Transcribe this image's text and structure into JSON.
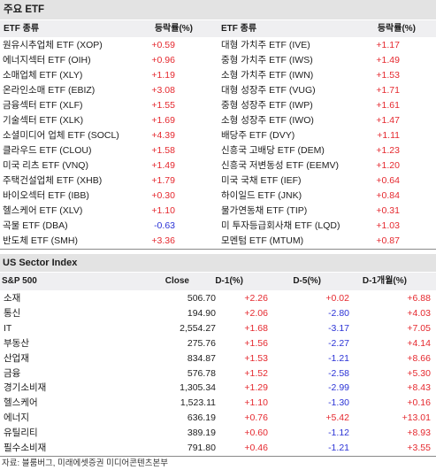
{
  "etf": {
    "title": "주요 ETF",
    "headers": {
      "name_left": "ETF 종류",
      "change_left": "등락률(%)",
      "name_right": "ETF 종류",
      "change_right": "등락률(%)"
    },
    "rows": [
      {
        "name_left": "원유시추업체 ETF (XOP)",
        "change_left": "+0.59",
        "name_right": "대형 가치주 ETF (IVE)",
        "change_right": "+1.17"
      },
      {
        "name_left": "에너지섹터 ETF (OIH)",
        "change_left": "+0.96",
        "name_right": "중형 가치주 ETF (IWS)",
        "change_right": "+1.49"
      },
      {
        "name_left": "소매업체 ETF (XLY)",
        "change_left": "+1.19",
        "name_right": "소형 가치주 ETF (IWN)",
        "change_right": "+1.53"
      },
      {
        "name_left": "온라인소매 ETF (EBIZ)",
        "change_left": "+3.08",
        "name_right": "대형 성장주 ETF (VUG)",
        "change_right": "+1.71"
      },
      {
        "name_left": "금융섹터 ETF (XLF)",
        "change_left": "+1.55",
        "name_right": "중형 성장주 ETF (IWP)",
        "change_right": "+1.61"
      },
      {
        "name_left": "기술섹터 ETF (XLK)",
        "change_left": "+1.69",
        "name_right": "소형 성장주 ETF (IWO)",
        "change_right": "+1.47"
      },
      {
        "name_left": "소셜미디어 업체 ETF (SOCL)",
        "change_left": "+4.39",
        "name_right": "배당주 ETF (DVY)",
        "change_right": "+1.11"
      },
      {
        "name_left": "클라우드 ETF (CLOU)",
        "change_left": "+1.58",
        "name_right": "신흥국 고배당 ETF (DEM)",
        "change_right": "+1.23"
      },
      {
        "name_left": "미국 리츠 ETF (VNQ)",
        "change_left": "+1.49",
        "name_right": "신흥국 저변동성 ETF (EEMV)",
        "change_right": "+1.20"
      },
      {
        "name_left": "주택건설업체 ETF (XHB)",
        "change_left": "+1.79",
        "name_right": "미국 국채 ETF (IEF)",
        "change_right": "+0.64"
      },
      {
        "name_left": "바이오섹터 ETF (IBB)",
        "change_left": "+0.30",
        "name_right": "하이일드 ETF (JNK)",
        "change_right": "+0.84"
      },
      {
        "name_left": "헬스케어 ETF (XLV)",
        "change_left": "+1.10",
        "name_right": "물가연동채 ETF (TIP)",
        "change_right": "+0.31"
      },
      {
        "name_left": "곡물 ETF (DBA)",
        "change_left": "-0.63",
        "name_right": "미 투자등급회사채 ETF (LQD)",
        "change_right": "+1.03"
      },
      {
        "name_left": "반도체 ETF (SMH)",
        "change_left": "+3.36",
        "name_right": "모멘텀 ETF (MTUM)",
        "change_right": "+0.87"
      }
    ]
  },
  "sector": {
    "title": "US Sector Index",
    "headers": {
      "index": "S&P 500",
      "close": "Close",
      "d1": "D-1(%)",
      "d5": "D-5(%)",
      "d1m": "D-1개월(%)"
    },
    "rows": [
      {
        "name": "소재",
        "close": "506.70",
        "d1": "+2.26",
        "d5": "+0.02",
        "d1m": "+6.88"
      },
      {
        "name": "통신",
        "close": "194.90",
        "d1": "+2.06",
        "d5": "-2.80",
        "d1m": "+4.03"
      },
      {
        "name": "IT",
        "close": "2,554.27",
        "d1": "+1.68",
        "d5": "-3.17",
        "d1m": "+7.05"
      },
      {
        "name": "부동산",
        "close": "275.76",
        "d1": "+1.56",
        "d5": "-2.27",
        "d1m": "+4.14"
      },
      {
        "name": "산업재",
        "close": "834.87",
        "d1": "+1.53",
        "d5": "-1.21",
        "d1m": "+8.66"
      },
      {
        "name": "금융",
        "close": "576.78",
        "d1": "+1.52",
        "d5": "-2.58",
        "d1m": "+5.30"
      },
      {
        "name": "경기소비재",
        "close": "1,305.34",
        "d1": "+1.29",
        "d5": "-2.99",
        "d1m": "+8.43"
      },
      {
        "name": "헬스케어",
        "close": "1,523.11",
        "d1": "+1.10",
        "d5": "-1.30",
        "d1m": "+0.16"
      },
      {
        "name": "에너지",
        "close": "636.19",
        "d1": "+0.76",
        "d5": "+5.42",
        "d1m": "+13.01"
      },
      {
        "name": "유틸리티",
        "close": "389.19",
        "d1": "+0.60",
        "d5": "-1.12",
        "d1m": "+8.93"
      },
      {
        "name": "필수소비재",
        "close": "791.80",
        "d1": "+0.46",
        "d5": "-1.21",
        "d1m": "+3.55"
      }
    ]
  },
  "source": "자료: 블룸버그, 미래에셋증권 미디어콘텐츠본부",
  "colors": {
    "positive": "#e5282e",
    "negative": "#2b33d6"
  }
}
